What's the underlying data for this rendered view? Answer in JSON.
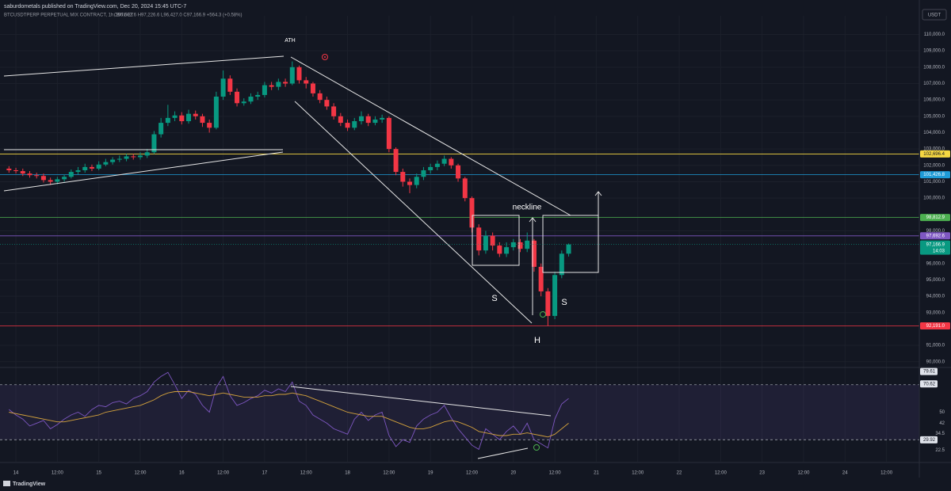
{
  "header": {
    "publisher": "saburdometals published on TradingView.com, Dec 20, 2024 15:45 UTC-7",
    "symbol": "BTCUSDTPERP PERPETUAL MIX CONTRACT, 1h, BITGET",
    "ohlc": "O96,602.6 H97,226.6 L96,427.0 C97,166.9 +564.3 (+0.58%)"
  },
  "footer": "TradingView",
  "chart_data": [
    {
      "type": "candlestick",
      "unit": "USDT",
      "up_color": "#089981",
      "down_color": "#f23645",
      "grid": true,
      "xlim": [
        -4.6,
        261.5
      ],
      "ylim": [
        89650,
        110750
      ],
      "x": [
        -2,
        0,
        2,
        4,
        6,
        8,
        10,
        12,
        14,
        16,
        18,
        20,
        22,
        24,
        26,
        28,
        30,
        32,
        34,
        36,
        38,
        40,
        42,
        44,
        46,
        48,
        50,
        52,
        54,
        56,
        58,
        60,
        62,
        64,
        66,
        68,
        70,
        72,
        74,
        76,
        78,
        80,
        82,
        84,
        86,
        88,
        90,
        92,
        94,
        96,
        98,
        100,
        102,
        104,
        106,
        108,
        110,
        112,
        114,
        116,
        118,
        120,
        122,
        124,
        126,
        128,
        130,
        132,
        134,
        136,
        138,
        140,
        142,
        144,
        146,
        148,
        150,
        152,
        154,
        156,
        158,
        160
      ],
      "open": [
        101800,
        101700,
        101650,
        101500,
        101400,
        101350,
        101100,
        101000,
        101150,
        101300,
        101600,
        101700,
        101900,
        101800,
        102050,
        102200,
        102350,
        102400,
        102550,
        102500,
        102600,
        102800,
        103900,
        104600,
        104900,
        105050,
        104700,
        105150,
        105000,
        104600,
        104300,
        106200,
        107300,
        106500,
        105800,
        105900,
        106200,
        106300,
        106900,
        106800,
        107100,
        107000,
        108000,
        107200,
        107000,
        106400,
        106000,
        105600,
        105000,
        104600,
        104300,
        104700,
        105000,
        104600,
        104800,
        104900,
        103000,
        101600,
        101000,
        100800,
        101300,
        101700,
        101900,
        102100,
        102400,
        102000,
        101200,
        100000,
        98200,
        96800,
        97700,
        97100,
        96600,
        97000,
        97300,
        96900,
        97400,
        95800,
        94300,
        92800,
        95300,
        96602.6
      ],
      "high": [
        101950,
        101850,
        101800,
        101650,
        101550,
        101500,
        101250,
        101300,
        101450,
        101750,
        101900,
        102100,
        102050,
        102250,
        102400,
        102500,
        102600,
        102700,
        102700,
        102800,
        103000,
        104100,
        104900,
        105700,
        105300,
        105250,
        105400,
        105350,
        105150,
        104800,
        106500,
        107800,
        107500,
        106700,
        106100,
        106400,
        106500,
        107100,
        107100,
        107300,
        107300,
        108350,
        108100,
        107400,
        107100,
        106600,
        106200,
        105800,
        105200,
        104800,
        104900,
        105300,
        105150,
        105000,
        105100,
        105000,
        103100,
        101800,
        101200,
        101500,
        101900,
        102100,
        102300,
        102600,
        102500,
        102100,
        101300,
        100100,
        98400,
        98000,
        97900,
        97300,
        97300,
        97500,
        97500,
        97900,
        97500,
        96000,
        94500,
        95500,
        96800,
        97226.6
      ],
      "low": [
        101550,
        101500,
        101350,
        101250,
        101200,
        100950,
        100800,
        100850,
        101000,
        101200,
        101450,
        101550,
        101650,
        101700,
        101950,
        102050,
        102200,
        102250,
        102350,
        102350,
        102450,
        102700,
        103700,
        104400,
        104700,
        104500,
        104550,
        104800,
        104350,
        104000,
        104200,
        106000,
        106300,
        105600,
        105650,
        105750,
        106000,
        106150,
        106600,
        106600,
        106800,
        106900,
        107000,
        106700,
        106200,
        105800,
        105400,
        104800,
        104400,
        104100,
        104150,
        104500,
        104400,
        104450,
        104600,
        102800,
        101400,
        100700,
        100300,
        100600,
        101100,
        101500,
        101700,
        101950,
        101800,
        101000,
        99800,
        97900,
        96500,
        96600,
        96800,
        96400,
        96400,
        96800,
        96700,
        96700,
        95500,
        94000,
        92191,
        92600,
        95100,
        96427
      ],
      "close": [
        101700,
        101650,
        101500,
        101400,
        101350,
        101100,
        101000,
        101150,
        101300,
        101600,
        101700,
        101900,
        101800,
        102050,
        102200,
        102350,
        102400,
        102550,
        102500,
        102600,
        102800,
        103900,
        104600,
        104900,
        105050,
        104700,
        105150,
        105000,
        104600,
        104300,
        106200,
        107300,
        106500,
        105800,
        105900,
        106200,
        106300,
        106900,
        106800,
        107100,
        107000,
        108000,
        107200,
        107000,
        106400,
        106000,
        105600,
        105000,
        104600,
        104300,
        104700,
        105000,
        104600,
        104800,
        104900,
        103000,
        101600,
        101000,
        100800,
        101300,
        101700,
        101900,
        102100,
        102400,
        102000,
        101200,
        100000,
        98200,
        96800,
        97700,
        97100,
        96600,
        97000,
        97300,
        96900,
        97400,
        95800,
        94300,
        92800,
        95300,
        96602.6,
        97166.9
      ],
      "yticks": [
        {
          "value": 110000,
          "label": "110,000.0"
        },
        {
          "value": 109000,
          "label": "109,000.0"
        },
        {
          "value": 108000,
          "label": "108,000.0"
        },
        {
          "value": 107000,
          "label": "107,000.0"
        },
        {
          "value": 106000,
          "label": "106,000.0"
        },
        {
          "value": 105000,
          "label": "105,000.0"
        },
        {
          "value": 104000,
          "label": "104,000.0"
        },
        {
          "value": 103000,
          "label": "103,000.0"
        },
        {
          "value": 102000,
          "label": "102,000.0"
        },
        {
          "value": 101000,
          "label": "101,000.0"
        },
        {
          "value": 100000,
          "label": "100,000.0"
        },
        {
          "value": 98000,
          "label": "98,000.0"
        },
        {
          "value": 96000,
          "label": "96,000.0"
        },
        {
          "value": 95000,
          "label": "95,000.0"
        },
        {
          "value": 94000,
          "label": "94,000.0"
        },
        {
          "value": 93000,
          "label": "93,000.0"
        },
        {
          "value": 91000,
          "label": "91,000.0"
        },
        {
          "value": 90000,
          "label": "90,000.0"
        }
      ],
      "xticks": [
        {
          "value": 0,
          "label": "14"
        },
        {
          "value": 12,
          "label": "12:00"
        },
        {
          "value": 24,
          "label": "15"
        },
        {
          "value": 36,
          "label": "12:00"
        },
        {
          "value": 48,
          "label": "16"
        },
        {
          "value": 60,
          "label": "12:00"
        },
        {
          "value": 72,
          "label": "17"
        },
        {
          "value": 84,
          "label": "12:00"
        },
        {
          "value": 96,
          "label": "18"
        },
        {
          "value": 108,
          "label": "12:00"
        },
        {
          "value": 120,
          "label": "19"
        },
        {
          "value": 132,
          "label": "12:00"
        },
        {
          "value": 144,
          "label": "20"
        },
        {
          "value": 156,
          "label": "12:00"
        },
        {
          "value": 168,
          "label": "21"
        },
        {
          "value": 180,
          "label": "12:00"
        },
        {
          "value": 192,
          "label": "22"
        },
        {
          "value": 204,
          "label": "12:00"
        },
        {
          "value": 216,
          "label": "23"
        },
        {
          "value": 228,
          "label": "12:00"
        },
        {
          "value": 240,
          "label": "24"
        },
        {
          "value": 252,
          "label": "12:00"
        }
      ],
      "levels": [
        {
          "value": 102696.4,
          "label": "102,696.4",
          "color": "#f5d742",
          "text_color": "#131722"
        },
        {
          "value": 101426.8,
          "label": "101,426.8",
          "color": "#1e9bd7",
          "text_color": "#ffffff"
        },
        {
          "value": 98812.9,
          "label": "98,812.9",
          "color": "#4caf50",
          "text_color": "#ffffff"
        },
        {
          "value": 97692.6,
          "label": "97,692.6",
          "color": "#7e57c2",
          "text_color": "#ffffff"
        },
        {
          "value": 92191.0,
          "label": "92,191.0",
          "color": "#f23645",
          "text_color": "#ffffff"
        }
      ],
      "last": {
        "value": 97166.9,
        "label": "97,166.9",
        "countdown": "14:03",
        "color": "#089981"
      },
      "annotations": [
        "ATH",
        "neckline",
        "S",
        "S",
        "H"
      ]
    },
    {
      "type": "line",
      "ylim": [
        14,
        82
      ],
      "yticks": [
        22.5,
        34.5,
        42,
        50
      ],
      "tags": [
        79.61,
        70.62,
        29.92
      ],
      "bands": [
        30,
        70
      ],
      "band_color": "#7e57c2",
      "series": [
        {
          "color": "#7e57c2",
          "values": [
            52,
            48,
            45,
            40,
            42,
            44,
            38,
            41,
            45,
            48,
            50,
            47,
            52,
            55,
            54,
            57,
            58,
            56,
            60,
            62,
            65,
            72,
            76,
            79,
            70,
            60,
            66,
            63,
            55,
            50,
            68,
            76,
            62,
            55,
            57,
            60,
            62,
            66,
            64,
            67,
            65,
            72,
            58,
            55,
            48,
            45,
            42,
            38,
            36,
            34,
            45,
            50,
            44,
            48,
            50,
            33,
            25,
            30,
            28,
            40,
            45,
            48,
            50,
            55,
            46,
            38,
            32,
            26,
            23,
            38,
            34,
            30,
            36,
            40,
            34,
            42,
            30,
            27,
            24,
            45,
            56,
            60
          ]
        },
        {
          "color": "#d4a23c",
          "values": [
            50,
            49,
            48,
            47,
            46,
            45,
            44,
            43,
            43,
            44,
            45,
            46,
            47,
            48,
            50,
            51,
            52,
            53,
            54,
            55,
            57,
            59,
            62,
            64,
            65,
            65,
            65,
            64,
            63,
            62,
            63,
            64,
            63,
            62,
            61,
            61,
            61,
            62,
            62,
            63,
            63,
            64,
            63,
            62,
            60,
            58,
            56,
            54,
            52,
            50,
            49,
            48,
            47,
            47,
            47,
            45,
            43,
            41,
            39,
            38,
            38,
            39,
            41,
            43,
            44,
            43,
            41,
            39,
            36,
            35,
            34,
            33,
            33,
            34,
            34,
            35,
            34,
            33,
            32,
            34,
            38,
            42
          ]
        }
      ]
    }
  ]
}
